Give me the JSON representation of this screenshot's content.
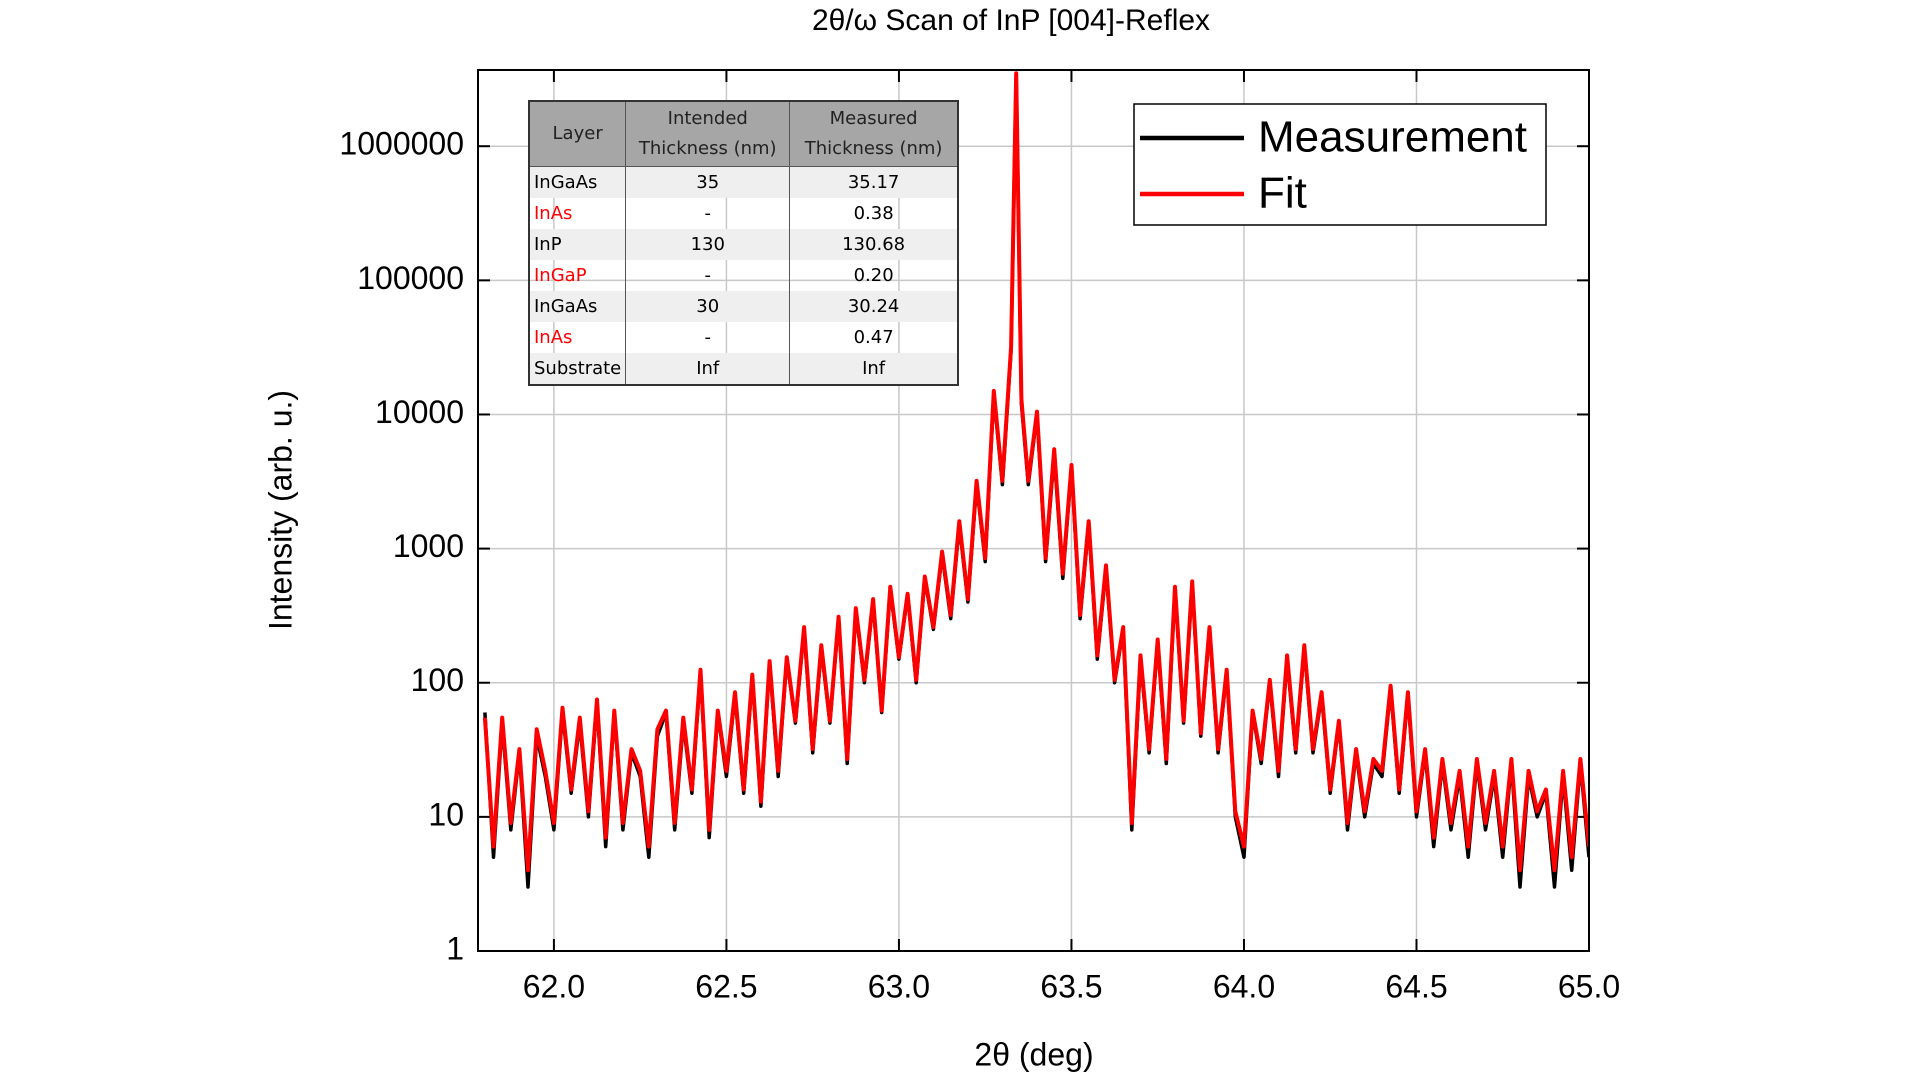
{
  "chart_data": {
    "type": "line",
    "title": "2θ/ω  Scan of InP [004]-Reflex",
    "x_label": "2θ (deg)",
    "y_label": "Intensity (arb. u.)",
    "ylog": true,
    "grid": true,
    "legend_position": "upper right",
    "xlim": [
      61.78,
      65.0
    ],
    "ylim": [
      1,
      3700000
    ],
    "xticks": [
      {
        "value": 62,
        "label": "62.0"
      },
      62.5,
      {
        "value": 63,
        "label": "63.0"
      },
      63.5,
      {
        "value": 64,
        "label": "64.0"
      },
      64.5,
      {
        "value": 65,
        "label": "65.0"
      }
    ],
    "yticks": [
      1,
      10,
      100,
      1000,
      10000,
      100000,
      1000000
    ],
    "x": [
      61.8,
      61.825,
      61.85,
      61.875,
      61.9,
      61.925,
      61.95,
      61.975,
      62.0,
      62.025,
      62.05,
      62.075,
      62.1,
      62.125,
      62.15,
      62.175,
      62.2,
      62.225,
      62.25,
      62.275,
      62.3,
      62.325,
      62.35,
      62.375,
      62.4,
      62.425,
      62.45,
      62.475,
      62.5,
      62.525,
      62.55,
      62.575,
      62.6,
      62.625,
      62.65,
      62.675,
      62.7,
      62.725,
      62.75,
      62.775,
      62.8,
      62.825,
      62.85,
      62.875,
      62.9,
      62.925,
      62.95,
      62.975,
      63.0,
      63.025,
      63.05,
      63.075,
      63.1,
      63.125,
      63.15,
      63.175,
      63.2,
      63.225,
      63.25,
      63.275,
      63.3,
      63.325,
      63.34,
      63.355,
      63.375,
      63.4,
      63.425,
      63.45,
      63.475,
      63.5,
      63.525,
      63.55,
      63.575,
      63.6,
      63.625,
      63.65,
      63.675,
      63.7,
      63.725,
      63.75,
      63.775,
      63.8,
      63.825,
      63.85,
      63.875,
      63.9,
      63.925,
      63.95,
      63.975,
      64.0,
      64.025,
      64.05,
      64.075,
      64.1,
      64.125,
      64.15,
      64.175,
      64.2,
      64.225,
      64.25,
      64.275,
      64.3,
      64.325,
      64.35,
      64.375,
      64.4,
      64.425,
      64.45,
      64.475,
      64.5,
      64.525,
      64.55,
      64.575,
      64.6,
      64.625,
      64.65,
      64.675,
      64.7,
      64.725,
      64.75,
      64.775,
      64.8,
      64.825,
      64.85,
      64.875,
      64.9,
      64.925,
      64.95,
      64.975,
      65.0
    ],
    "series": [
      {
        "name": "Measurement",
        "color": "#000000",
        "values": [
          60,
          5,
          50,
          8,
          30,
          3,
          40,
          20,
          8,
          60,
          15,
          50,
          10,
          70,
          6,
          60,
          8,
          30,
          20,
          5,
          40,
          60,
          8,
          50,
          15,
          120,
          7,
          60,
          20,
          80,
          15,
          110,
          12,
          140,
          20,
          150,
          50,
          250,
          30,
          180,
          50,
          300,
          25,
          350,
          100,
          400,
          60,
          500,
          150,
          450,
          100,
          600,
          250,
          900,
          300,
          1500,
          400,
          3000,
          800,
          14000,
          3000,
          30000,
          3500000,
          12000,
          3000,
          10000,
          800,
          5000,
          600,
          4000,
          300,
          1500,
          150,
          700,
          100,
          250,
          8,
          150,
          30,
          200,
          25,
          500,
          50,
          550,
          40,
          250,
          30,
          120,
          10,
          5,
          60,
          25,
          100,
          20,
          150,
          30,
          180,
          30,
          80,
          15,
          50,
          8,
          30,
          10,
          25,
          20,
          90,
          15,
          80,
          10,
          30,
          6,
          25,
          8,
          20,
          5,
          25,
          8,
          20,
          5,
          25,
          3,
          20,
          10,
          15,
          3,
          20,
          4,
          25,
          5
        ]
      },
      {
        "name": "Fit",
        "color": "#ff0000",
        "values": [
          55,
          6,
          55,
          9,
          32,
          4,
          45,
          22,
          9,
          65,
          16,
          55,
          11,
          75,
          7,
          62,
          9,
          32,
          22,
          6,
          45,
          62,
          9,
          55,
          16,
          125,
          8,
          62,
          22,
          85,
          16,
          115,
          13,
          145,
          22,
          155,
          52,
          260,
          32,
          190,
          52,
          310,
          27,
          360,
          105,
          420,
          62,
          520,
          155,
          460,
          105,
          620,
          260,
          950,
          320,
          1600,
          420,
          3200,
          850,
          15000,
          3200,
          32000,
          3500000,
          13000,
          3200,
          10500,
          850,
          5500,
          650,
          4200,
          320,
          1600,
          160,
          750,
          105,
          260,
          9,
          160,
          32,
          210,
          27,
          520,
          52,
          570,
          42,
          260,
          32,
          125,
          11,
          6,
          62,
          27,
          105,
          22,
          160,
          32,
          190,
          32,
          85,
          16,
          52,
          9,
          32,
          11,
          27,
          22,
          95,
          16,
          85,
          11,
          32,
          7,
          27,
          9,
          22,
          6,
          27,
          9,
          22,
          6,
          27,
          4,
          22,
          11,
          16,
          4,
          22,
          5,
          27,
          6
        ]
      }
    ],
    "table": {
      "header": [
        "Layer",
        "Intended Thickness (nm)",
        "Measured Thickness (nm)"
      ],
      "rows": [
        [
          "InGaAs",
          "35",
          "35.17"
        ],
        [
          "InAs",
          "-",
          "0.38"
        ],
        [
          "InP",
          "130",
          "130.68"
        ],
        [
          "InGaP",
          "-",
          "0.20"
        ],
        [
          "InGaAs",
          "30",
          "30.24"
        ],
        [
          "InAs",
          "-",
          "0.47"
        ],
        [
          "Substrate",
          "Inf",
          "Inf"
        ]
      ],
      "layer_colors": [
        "#000000",
        "#ff0000",
        "#000000",
        "#ff0000",
        "#000000",
        "#ff0000",
        "#000000"
      ]
    }
  }
}
